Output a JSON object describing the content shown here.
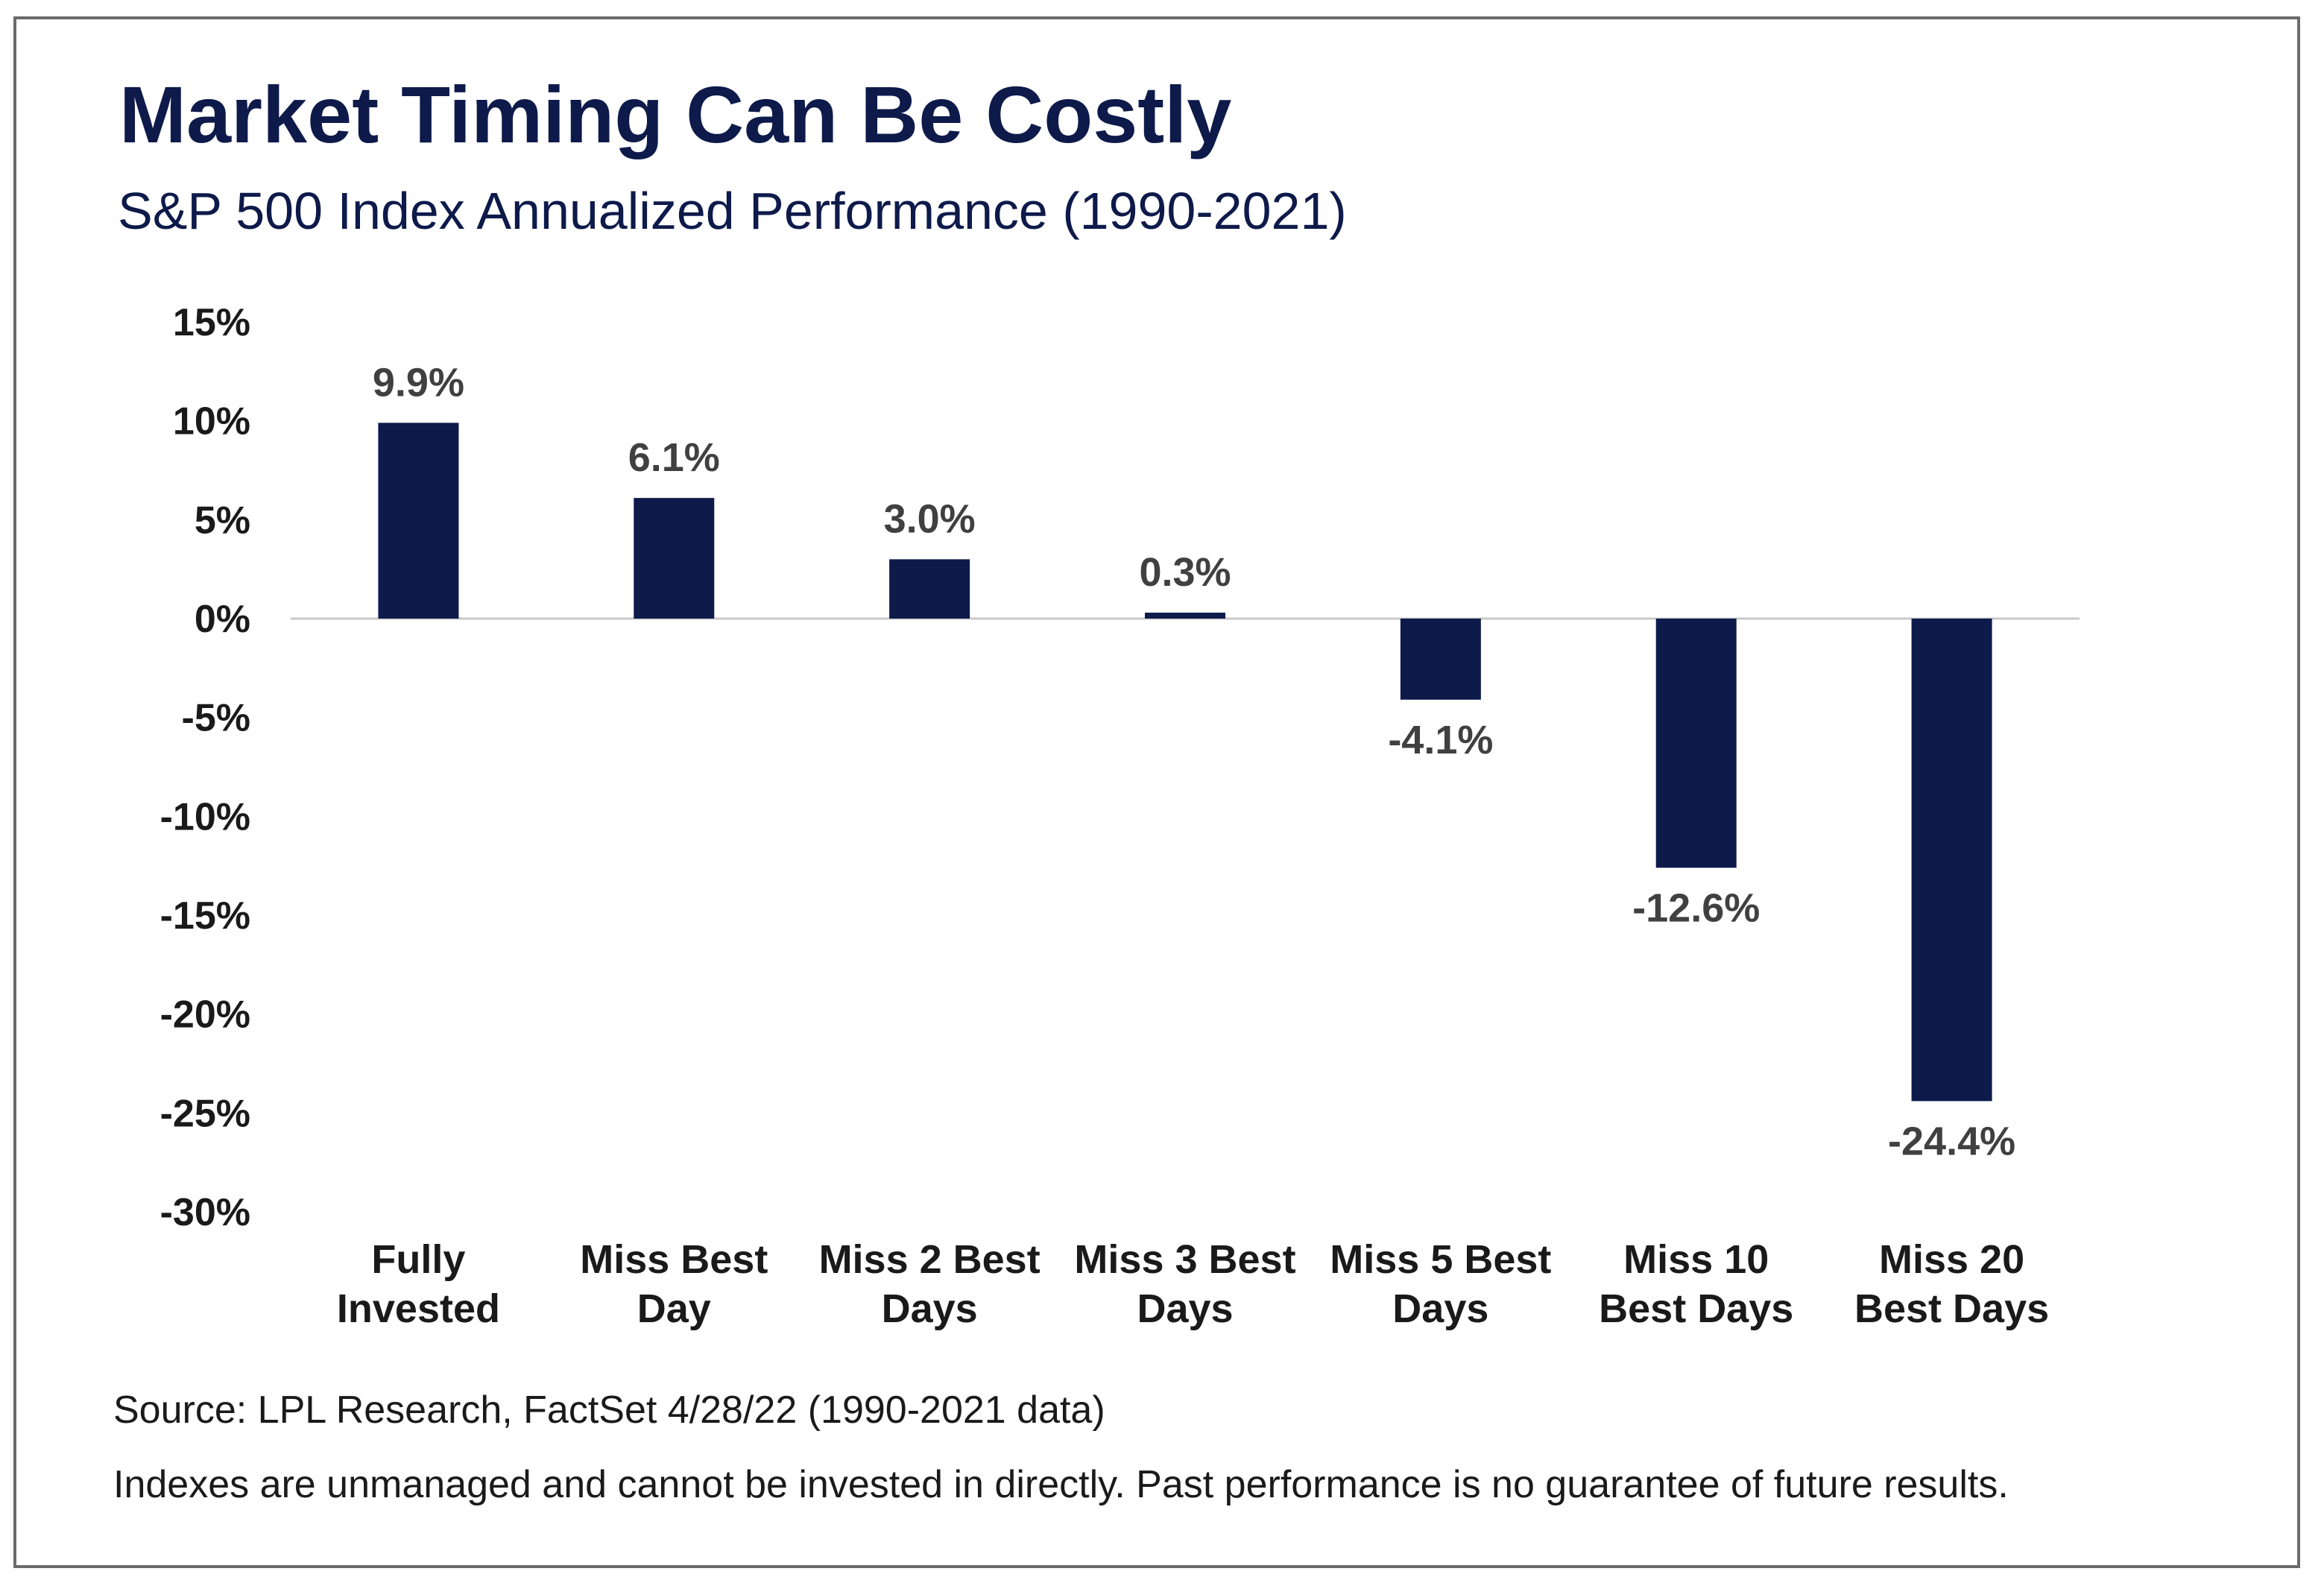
{
  "header": {
    "title": "Market Timing Can Be Costly",
    "subtitle": "S&P 500 Index Annualized Performance (1990-2021)"
  },
  "footer": {
    "source": "Source: LPL Research, FactSet 4/28/22 (1990-2021 data)",
    "disclaimer": "Indexes are unmanaged and cannot be invested in directly. Past performance is no guarantee of future results."
  },
  "colors": {
    "bar": "#0d1a4a",
    "title": "#0d1a4a",
    "zero_line": "#c8c8c8",
    "text": "#1a1a1a",
    "data_label": "#404040"
  },
  "chart_data": {
    "type": "bar",
    "title": "Market Timing Can Be Costly",
    "subtitle": "S&P 500 Index Annualized Performance (1990-2021)",
    "xlabel": "",
    "ylabel": "",
    "ylim": [
      -30,
      15
    ],
    "grid": false,
    "y_ticks": [
      {
        "value": 15,
        "label": "15%"
      },
      {
        "value": 10,
        "label": "10%"
      },
      {
        "value": 5,
        "label": "5%"
      },
      {
        "value": 0,
        "label": "0%"
      },
      {
        "value": -5,
        "label": "-5%"
      },
      {
        "value": -10,
        "label": "-10%"
      },
      {
        "value": -15,
        "label": "-15%"
      },
      {
        "value": -20,
        "label": "-20%"
      },
      {
        "value": -25,
        "label": "-25%"
      },
      {
        "value": -30,
        "label": "-30%"
      }
    ],
    "categories": [
      [
        "Fully",
        "Invested"
      ],
      [
        "Miss Best",
        "Day"
      ],
      [
        "Miss 2 Best",
        "Days"
      ],
      [
        "Miss 3 Best",
        "Days"
      ],
      [
        "Miss 5 Best",
        "Days"
      ],
      [
        "Miss 10",
        "Best Days"
      ],
      [
        "Miss 20",
        "Best Days"
      ]
    ],
    "values": [
      9.9,
      6.1,
      3.0,
      0.3,
      -4.1,
      -12.6,
      -24.4
    ],
    "data_labels": [
      "9.9%",
      "6.1%",
      "3.0%",
      "0.3%",
      "-4.1%",
      "-12.6%",
      "-24.4%"
    ]
  }
}
